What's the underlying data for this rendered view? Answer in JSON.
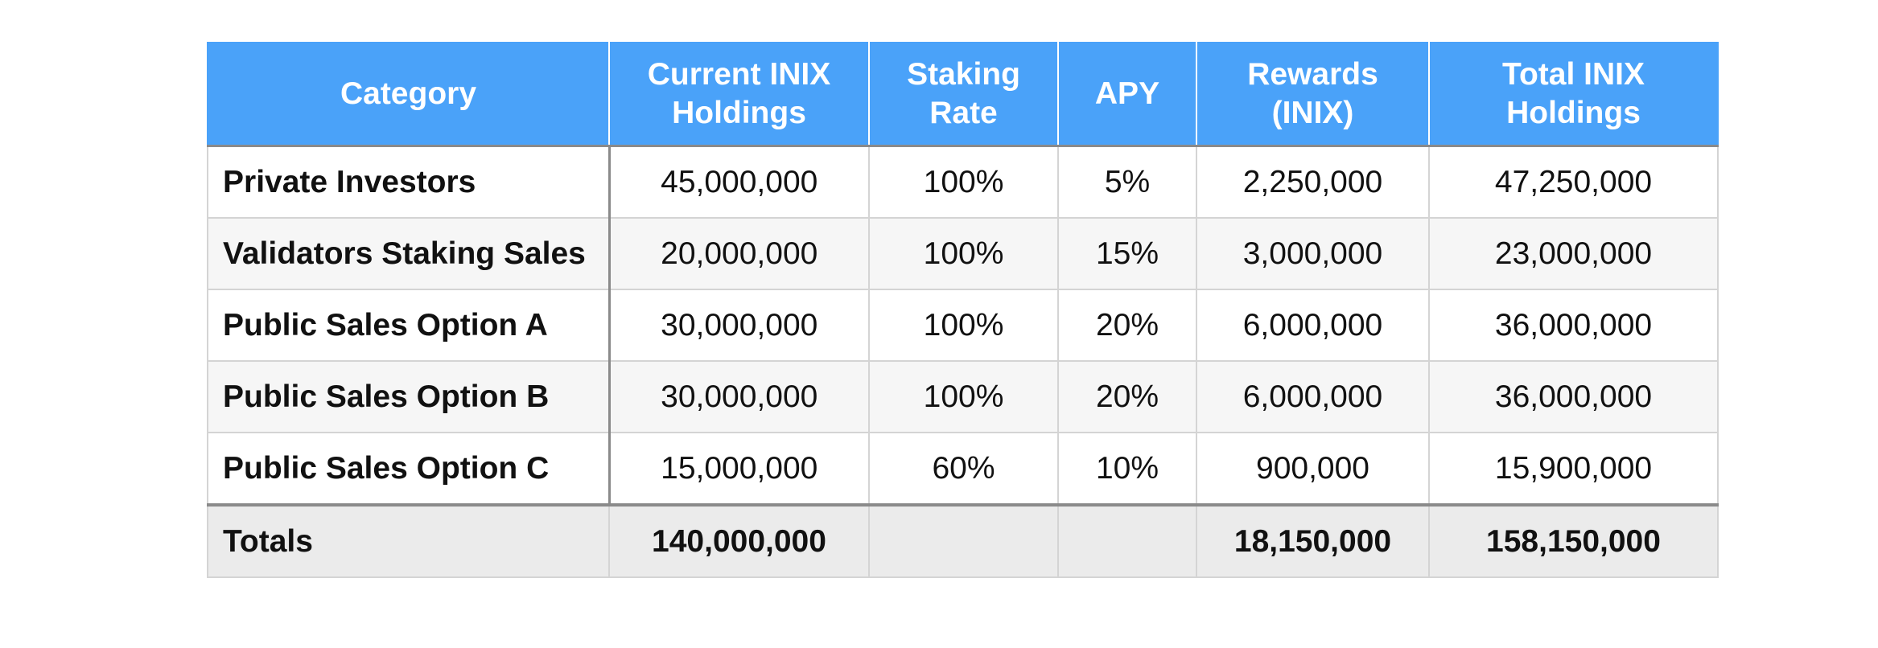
{
  "table": {
    "headers": [
      "Category",
      "Current INIX Holdings",
      "Staking Rate",
      "APY",
      "Rewards (INIX)",
      "Total INIX Holdings"
    ],
    "rows": [
      [
        "Private Investors",
        "45,000,000",
        "100%",
        "5%",
        "2,250,000",
        "47,250,000"
      ],
      [
        "Validators Staking Sales",
        "20,000,000",
        "100%",
        "15%",
        "3,000,000",
        "23,000,000"
      ],
      [
        "Public Sales Option A",
        "30,000,000",
        "100%",
        "20%",
        "6,000,000",
        "36,000,000"
      ],
      [
        "Public Sales Option B",
        "30,000,000",
        "100%",
        "20%",
        "6,000,000",
        "36,000,000"
      ],
      [
        "Public Sales Option C",
        "15,000,000",
        "60%",
        "10%",
        "900,000",
        "15,900,000"
      ]
    ],
    "totals": [
      "Totals",
      "140,000,000",
      "",
      "",
      "18,150,000",
      "158,150,000"
    ]
  },
  "colors": {
    "header_background": "#4aa2f9",
    "header_text": "#ffffff",
    "totals_background": "#ebebeb",
    "stripe_background": "#f6f6f6"
  }
}
